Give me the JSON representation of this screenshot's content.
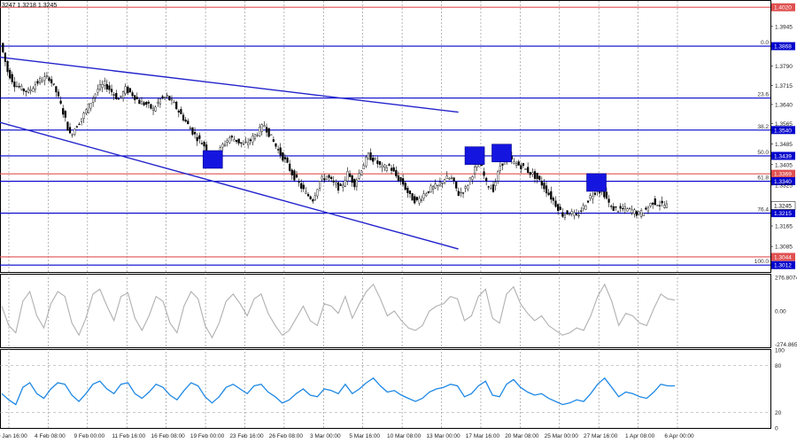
{
  "header": {
    "text": "3247 1.3218 1.3245"
  },
  "chart_data": [
    {
      "type": "candlestick",
      "name": "price-panel",
      "ylim": [
        1.2985,
        1.4045
      ],
      "y_ticks": [
        1.3945,
        1.379,
        1.3715,
        1.364,
        1.3565,
        1.3485,
        1.3405,
        1.3325,
        1.3165,
        1.3085
      ],
      "x_tick_labels": [
        "30 Jan 16:00",
        "4 Feb 08:00",
        "9 Feb 00:00",
        "11 Feb 16:00",
        "16 Feb 08:00",
        "19 Feb 00:00",
        "23 Feb 16:00",
        "26 Feb 08:00",
        "3 Mar 00:00",
        "5 Mar 16:00",
        "10 Mar 08:00",
        "13 Mar 00:00",
        "17 Mar 16:00",
        "20 Mar 08:00",
        "25 Mar 00:00",
        "27 Mar 16:00",
        "1 Apr 08:00",
        "6 Apr 00:00"
      ],
      "close_path": [
        1.388,
        1.377,
        1.372,
        1.37,
        1.369,
        1.372,
        1.374,
        1.3745,
        1.369,
        1.361,
        1.352,
        1.356,
        1.36,
        1.365,
        1.37,
        1.372,
        1.369,
        1.366,
        1.37,
        1.368,
        1.365,
        1.364,
        1.362,
        1.366,
        1.367,
        1.364,
        1.36,
        1.356,
        1.352,
        1.349,
        1.346,
        1.343,
        1.348,
        1.351,
        1.35,
        1.348,
        1.35,
        1.353,
        1.356,
        1.351,
        1.346,
        1.342,
        1.337,
        1.333,
        1.329,
        1.327,
        1.334,
        1.336,
        1.333,
        1.331,
        1.337,
        1.333,
        1.339,
        1.344,
        1.342,
        1.339,
        1.34,
        1.336,
        1.333,
        1.328,
        1.326,
        1.329,
        1.331,
        1.332,
        1.335,
        1.335,
        1.329,
        1.331,
        1.337,
        1.342,
        1.333,
        1.331,
        1.34,
        1.344,
        1.341,
        1.34,
        1.338,
        1.336,
        1.333,
        1.329,
        1.325,
        1.321,
        1.322,
        1.32,
        1.324,
        1.328,
        1.331,
        1.329,
        1.3235,
        1.323,
        1.323,
        1.3225,
        1.321,
        1.323,
        1.326,
        1.325,
        1.3245
      ],
      "levels": [
        {
          "price": 1.402,
          "label": "1.4020",
          "color": "#e05050",
          "fib": ""
        },
        {
          "price": 1.3868,
          "label": "1.3868",
          "color": "#0000cc",
          "fib": "0.0"
        },
        {
          "price": 1.3665,
          "label": "",
          "color": "#0000cc",
          "fib": "23.6"
        },
        {
          "price": 1.354,
          "label": "1.3540",
          "color": "#0000cc",
          "fib": "38.2"
        },
        {
          "price": 1.3439,
          "label": "1.3439",
          "color": "#0000cc",
          "fib": "50.0"
        },
        {
          "price": 1.3369,
          "label": "1.3369",
          "color": "#e05050",
          "fib": ""
        },
        {
          "price": 1.334,
          "label": "1.3340",
          "color": "#0000cc",
          "fib": "61.8"
        },
        {
          "price": 1.3215,
          "label": "1.3215",
          "color": "#0000cc",
          "fib": "76.4"
        },
        {
          "price": 1.3044,
          "label": "1.3044",
          "color": "#e05050",
          "fib": ""
        },
        {
          "price": 1.3012,
          "label": "1.3012",
          "color": "#0000cc",
          "fib": "100.0"
        }
      ],
      "current_price": {
        "price": 1.3245,
        "label": "1.3245"
      },
      "channel_lines": [
        {
          "p1": [
            0,
            1.3825
          ],
          "p2": [
            0.595,
            1.361
          ]
        },
        {
          "p1": [
            0,
            1.357
          ],
          "p2": [
            0.595,
            1.3075
          ]
        }
      ],
      "markers": [
        {
          "x": 0.0,
          "price": 1.381
        },
        {
          "x": 0.275,
          "price": 1.3425
        },
        {
          "x": 0.615,
          "price": 1.344
        },
        {
          "x": 0.65,
          "price": 1.345
        },
        {
          "x": 0.773,
          "price": 1.3335
        }
      ]
    },
    {
      "type": "line",
      "name": "cci-panel",
      "ylim": [
        -300,
        300
      ],
      "y_ticks": [
        276.8074,
        0.0,
        -274.865
      ],
      "y_tick_labels": [
        "276.8074",
        "0.00",
        "-274.865"
      ],
      "color": "#b0b0b0",
      "values": [
        40,
        -120,
        -180,
        80,
        160,
        -40,
        -140,
        60,
        160,
        120,
        -100,
        -200,
        -60,
        140,
        180,
        40,
        -80,
        120,
        150,
        -60,
        -160,
        -40,
        120,
        80,
        -100,
        -180,
        40,
        160,
        100,
        -120,
        -220,
        -100,
        80,
        140,
        60,
        -40,
        100,
        140,
        -20,
        -120,
        -200,
        -160,
        -60,
        40,
        -80,
        -120,
        60,
        40,
        -20,
        120,
        -60,
        60,
        160,
        220,
        100,
        -40,
        0,
        -80,
        -140,
        -160,
        -120,
        0,
        40,
        60,
        120,
        100,
        -80,
        -40,
        120,
        180,
        -60,
        -100,
        140,
        200,
        60,
        -20,
        -80,
        -40,
        -120,
        -160,
        -200,
        -180,
        -140,
        -160,
        -40,
        120,
        220,
        80,
        -120,
        -20,
        -40,
        -100,
        -120,
        20,
        140,
        100,
        90
      ]
    },
    {
      "type": "line",
      "name": "rsi-panel",
      "ylim": [
        0,
        100
      ],
      "y_ticks": [
        100,
        80,
        20,
        0
      ],
      "y_tick_labels": [
        "100",
        "80",
        "20",
        "0"
      ],
      "color": "#1e88e5",
      "values": [
        44,
        36,
        30,
        52,
        58,
        44,
        38,
        50,
        58,
        56,
        42,
        34,
        44,
        56,
        60,
        50,
        44,
        56,
        58,
        44,
        38,
        46,
        56,
        52,
        42,
        36,
        48,
        58,
        54,
        40,
        32,
        40,
        52,
        56,
        50,
        44,
        54,
        56,
        46,
        40,
        32,
        36,
        44,
        50,
        42,
        40,
        50,
        48,
        44,
        56,
        44,
        50,
        58,
        64,
        54,
        46,
        48,
        42,
        38,
        34,
        38,
        46,
        50,
        52,
        56,
        54,
        40,
        44,
        54,
        60,
        42,
        40,
        56,
        62,
        52,
        46,
        42,
        44,
        38,
        34,
        30,
        32,
        36,
        34,
        44,
        56,
        64,
        52,
        40,
        46,
        44,
        40,
        38,
        46,
        56,
        54,
        54
      ]
    }
  ]
}
